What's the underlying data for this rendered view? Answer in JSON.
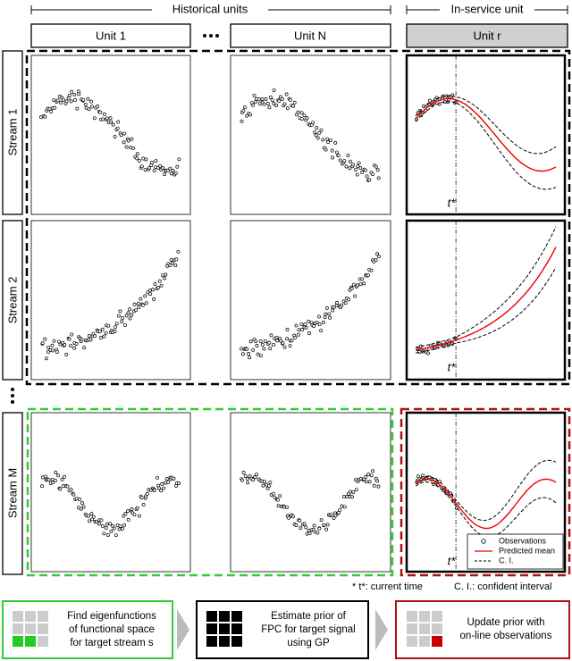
{
  "header": {
    "historical": "Historical units",
    "in_service": "In-service unit",
    "units": [
      "Unit 1",
      "Unit N",
      "Unit r"
    ]
  },
  "streams": [
    "Stream 1",
    "Stream 2",
    "Stream M"
  ],
  "current_time_label": "t*",
  "legend": [
    "Observations",
    "Predicted mean",
    "C. I."
  ],
  "footnote": [
    "* t*: current time",
    "C. I.: confident interval"
  ],
  "steps": [
    [
      "Find eigenfunctions",
      "of functional space",
      "for target stream s"
    ],
    [
      "Estimate prior of",
      "FPC for target signal",
      "using GP"
    ],
    [
      "Update prior with",
      "on-line observations"
    ]
  ]
}
